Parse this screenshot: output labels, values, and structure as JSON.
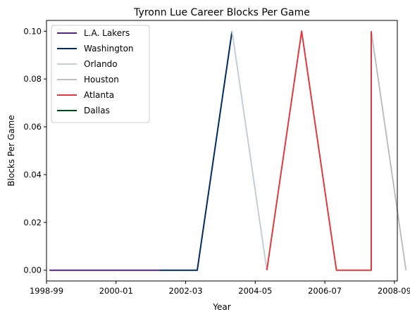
{
  "chart_data": {
    "type": "line",
    "title": "Tyronn Lue Career Blocks Per Game",
    "xlabel": "Year",
    "ylabel": "Blocks Per Game",
    "x_ticks": [
      "1998-99",
      "2000-01",
      "2002-03",
      "2004-05",
      "2006-07",
      "2008-09"
    ],
    "y_ticks": [
      "0.00",
      "0.02",
      "0.04",
      "0.06",
      "0.08",
      "0.10"
    ],
    "xlim": [
      "1998-09",
      "2008-10"
    ],
    "ylim": [
      -0.0045,
      0.1045
    ],
    "grid": false,
    "legend_position": "top-left",
    "series": [
      {
        "name": "L.A. Lakers",
        "color": "#552583",
        "points": [
          {
            "x": "1998-10",
            "y": 0
          },
          {
            "x": "2001-12",
            "y": 0
          }
        ]
      },
      {
        "name": "Washington",
        "color": "#002B5C",
        "points": [
          {
            "x": "2001-12",
            "y": 0
          },
          {
            "x": "2003-01",
            "y": 0
          },
          {
            "x": "2004-01",
            "y": 0.1
          }
        ]
      },
      {
        "name": "Orlando",
        "color": "#C4CED4",
        "points": [
          {
            "x": "2004-01",
            "y": 0.1
          },
          {
            "x": "2005-01",
            "y": 0
          }
        ]
      },
      {
        "name": "Houston",
        "color": "#BEBEBE",
        "points": [
          {
            "x": "2008-01",
            "y": 0.1
          },
          {
            "x": "2009-01",
            "y": 0
          }
        ]
      },
      {
        "name": "Atlanta",
        "color": "#E03A3E",
        "points": [
          {
            "x": "2005-01",
            "y": 0
          },
          {
            "x": "2006-01",
            "y": 0.1
          },
          {
            "x": "2007-01",
            "y": 0
          },
          {
            "x": "2008-01",
            "y": 0
          },
          {
            "x": "2008-01",
            "y": 0.1
          }
        ]
      },
      {
        "name": "Dallas",
        "color": "#00471B",
        "points": []
      }
    ]
  }
}
